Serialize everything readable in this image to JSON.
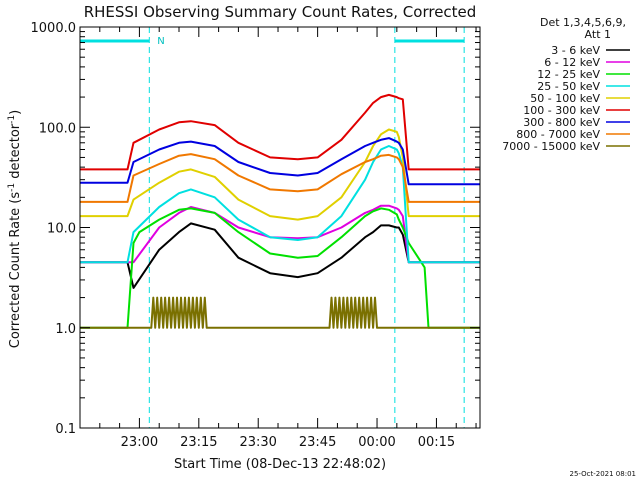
{
  "chart_data": {
    "type": "line",
    "title": "RHESSI Observing Summary Count Rates, Corrected",
    "xlabel": "Start Time (08-Dec-13 22:48:02)",
    "ylabel_main": "Corrected Count Rate (s",
    "ylabel_sup1": "-1",
    "ylabel_mid": " detector",
    "ylabel_sup2": "-1",
    "ylabel_end": ")",
    "yscale": "log",
    "xlim": [
      0,
      101
    ],
    "ylim": [
      0.1,
      1000
    ],
    "x_tick_positions": [
      15,
      30,
      45,
      60,
      75,
      90
    ],
    "x_tick_labels": [
      "23:00",
      "23:15",
      "23:30",
      "23:45",
      "00:00",
      "00:15"
    ],
    "y_ticks": [
      0.1,
      1,
      10,
      100,
      1000
    ],
    "y_tick_labels": [
      "0.1",
      "1.0",
      "10.0",
      "100.0",
      "1000.0"
    ],
    "grid": false,
    "legend_position": "right",
    "legend_header": [
      "Det 1,3,4,5,6,9,",
      "Att 1"
    ],
    "night_marker_label": "N",
    "night_intervals": [
      [
        0,
        17.5
      ],
      [
        79.5,
        97
      ]
    ],
    "timestamp": "25-Oct-2021 08:01",
    "series": [
      {
        "name": "3 - 6 keV",
        "color": "#000000",
        "x": [
          0,
          12,
          13.5,
          20,
          25,
          28,
          34,
          40,
          48,
          55,
          60,
          66,
          72,
          74,
          76,
          78,
          80,
          80.5,
          81.5,
          83,
          101
        ],
        "y": [
          4.5,
          4.5,
          2.5,
          6.0,
          9.0,
          11.0,
          9.5,
          5.0,
          3.5,
          3.2,
          3.5,
          5.0,
          8.0,
          9.0,
          10.5,
          10.5,
          10,
          10.0,
          8.5,
          4.5,
          4.5
        ]
      },
      {
        "name": "6 - 12 keV",
        "color": "#e000e0",
        "x": [
          0,
          12,
          13.5,
          20,
          25,
          28,
          34,
          40,
          48,
          55,
          60,
          66,
          72,
          74,
          76,
          78,
          80,
          80.5,
          81.5,
          83,
          101
        ],
        "y": [
          4.5,
          4.5,
          4.5,
          10.0,
          14.0,
          16.0,
          14.0,
          10.0,
          8.0,
          7.8,
          8.0,
          10.0,
          14.0,
          15.0,
          16.5,
          16.5,
          15.5,
          15.0,
          13.0,
          4.5,
          4.5
        ]
      },
      {
        "name": "12 - 25 keV",
        "color": "#00e000",
        "x": [
          0,
          11,
          12,
          13.5,
          15,
          20,
          25,
          28,
          34,
          40,
          48,
          55,
          60,
          66,
          72,
          74,
          76,
          78,
          80,
          80.5,
          81.5,
          83,
          87,
          88,
          101
        ],
        "y": [
          1.0,
          1.0,
          1.0,
          7.0,
          9.0,
          12.0,
          15.0,
          15.5,
          14.0,
          9.0,
          5.5,
          5.0,
          5.2,
          8.0,
          13.0,
          14.5,
          15.5,
          15.0,
          13.5,
          12.0,
          10.0,
          7.0,
          4.0,
          1.0,
          1.0
        ]
      },
      {
        "name": "25 - 50 keV",
        "color": "#00e0e0",
        "x": [
          0,
          12,
          13.5,
          20,
          25,
          28,
          34,
          40,
          48,
          55,
          60,
          66,
          72,
          74,
          76,
          78,
          80,
          80.5,
          81.5,
          83,
          101
        ],
        "y": [
          4.5,
          4.5,
          9.0,
          16.0,
          22.0,
          24.0,
          20.0,
          12.0,
          8.0,
          7.5,
          8.0,
          13.0,
          30.0,
          45.0,
          60.0,
          65.0,
          60.0,
          55.0,
          40.0,
          4.5,
          4.5
        ]
      },
      {
        "name": "50 - 100 keV",
        "color": "#e0d000",
        "x": [
          0,
          12,
          13.5,
          20,
          25,
          28,
          34,
          40,
          48,
          55,
          60,
          66,
          72,
          74,
          76,
          78,
          80,
          80.5,
          81.5,
          83,
          101
        ],
        "y": [
          13.0,
          13.0,
          19.0,
          28.0,
          36.0,
          38.0,
          32.0,
          19.0,
          13.0,
          12.0,
          13.0,
          20.0,
          45.0,
          65.0,
          85.0,
          95.0,
          90.0,
          80.0,
          50.0,
          13.0,
          13.0
        ]
      },
      {
        "name": "100 - 300 keV",
        "color": "#e00000",
        "x": [
          0,
          12,
          13.5,
          20,
          25,
          28,
          34,
          40,
          48,
          55,
          60,
          66,
          72,
          74,
          76,
          78,
          80,
          80.5,
          81.5,
          83,
          101
        ],
        "y": [
          38.0,
          38.0,
          70.0,
          95.0,
          112.0,
          115.0,
          105.0,
          70.0,
          50.0,
          48.0,
          50.0,
          75.0,
          140.0,
          175.0,
          200.0,
          210.0,
          200.0,
          195.0,
          190.0,
          38.0,
          38.0
        ]
      },
      {
        "name": "300 - 800 keV",
        "color": "#0000e0",
        "x": [
          0,
          12,
          13.5,
          20,
          25,
          28,
          34,
          40,
          48,
          55,
          60,
          66,
          72,
          74,
          76,
          78,
          80,
          80.5,
          81.5,
          83,
          101
        ],
        "y": [
          28.0,
          28.0,
          45.0,
          60.0,
          70.0,
          72.0,
          65.0,
          45.0,
          35.0,
          33.0,
          35.0,
          48.0,
          65.0,
          70.0,
          75.0,
          78.0,
          72.0,
          70.0,
          60.0,
          27.0,
          27.0
        ]
      },
      {
        "name": "800 - 7000 keV",
        "color": "#f07800",
        "x": [
          0,
          12,
          13.5,
          20,
          25,
          28,
          34,
          40,
          48,
          55,
          60,
          66,
          72,
          74,
          76,
          78,
          80,
          80.5,
          81.5,
          83,
          101
        ],
        "y": [
          18.0,
          18.0,
          33.0,
          43.0,
          52.0,
          54.0,
          48.0,
          33.0,
          24.0,
          23.0,
          24.0,
          34.0,
          45.0,
          48.0,
          52.0,
          53.0,
          50.0,
          48.0,
          40.0,
          18.0,
          18.0
        ]
      },
      {
        "name": "7000 - 15000 keV",
        "color": "#7a7000",
        "x": [
          0,
          18.0,
          18.5,
          19,
          19.5,
          20,
          20.5,
          21,
          21.5,
          22,
          22.5,
          23,
          23.5,
          24,
          24.5,
          25,
          25.5,
          26,
          26.5,
          27,
          27.5,
          28,
          28.5,
          29,
          29.5,
          30,
          30.5,
          31,
          31.5,
          32,
          33,
          34,
          35,
          36,
          45,
          62,
          63,
          63.5,
          64,
          64.5,
          65,
          65.5,
          66,
          66.5,
          67,
          67.5,
          68,
          68.5,
          69,
          69.5,
          70,
          70.5,
          71,
          71.5,
          72,
          72.5,
          73,
          73.5,
          74,
          74.5,
          75,
          76,
          77,
          101
        ],
        "y": [
          1.0,
          1.0,
          2.0,
          1.0,
          2.0,
          1.0,
          2.0,
          1.0,
          2.0,
          1.0,
          2.0,
          1.0,
          2.0,
          1.0,
          2.0,
          1.0,
          2.0,
          1.0,
          2.0,
          1.0,
          2.0,
          1.0,
          2.0,
          1.0,
          2.0,
          1.0,
          2.0,
          1.0,
          2.0,
          1.0,
          1.0,
          1.0,
          1.0,
          1.0,
          1.0,
          1.0,
          1.0,
          2.0,
          1.0,
          2.0,
          1.0,
          2.0,
          1.0,
          2.0,
          1.0,
          2.0,
          1.0,
          2.0,
          1.0,
          2.0,
          1.0,
          2.0,
          1.0,
          2.0,
          1.0,
          2.0,
          1.0,
          2.0,
          1.0,
          2.0,
          1.0,
          1.0,
          1.0,
          1.0
        ]
      }
    ]
  }
}
